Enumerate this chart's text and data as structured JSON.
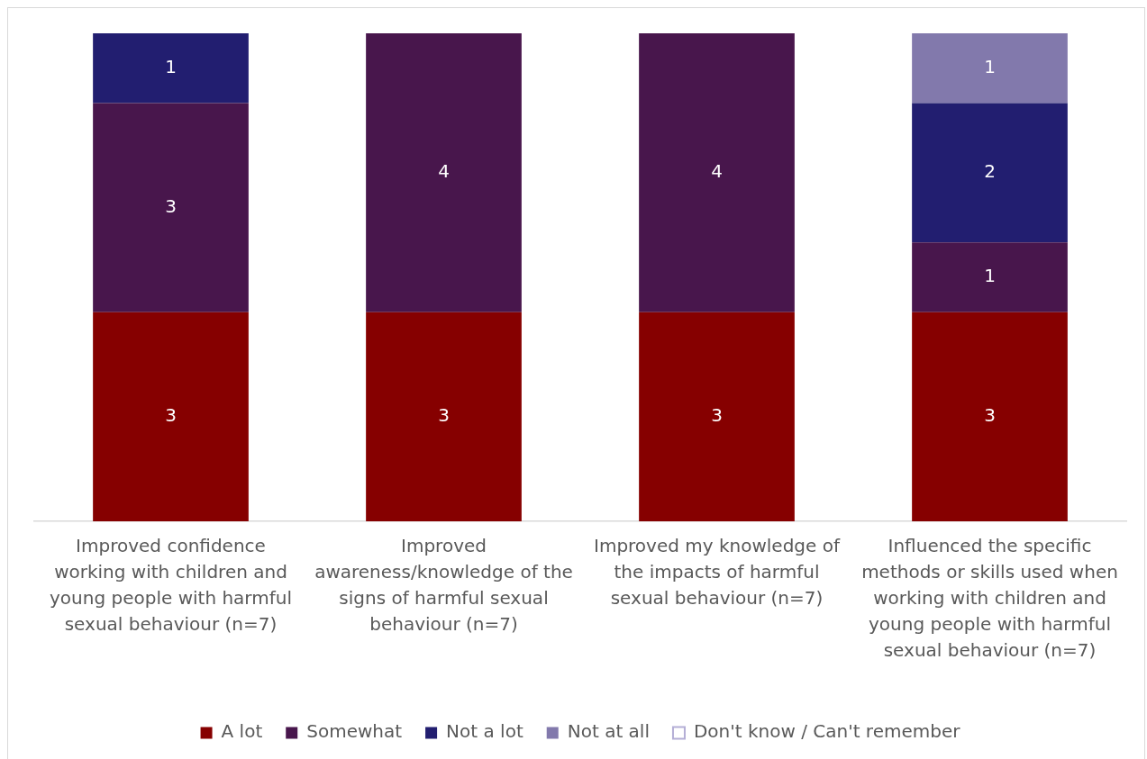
{
  "chart_data": {
    "type": "bar",
    "stacked": true,
    "legend": "bottom",
    "tick_labels": "x",
    "categories": [
      "Improved confidence working with children and young people with harmful sexual behaviour (n=7)",
      "Improved awareness/knowledge of the signs of harmful sexual behaviour (n=7)",
      "Improved my knowledge of the impacts of harmful sexual behaviour (n=7)",
      "Influenced the specific methods or skills used when working with children and young people with harmful sexual behaviour (n=7)"
    ],
    "series": [
      {
        "name": "A lot",
        "color": "#860000",
        "values": [
          3,
          3,
          3,
          3
        ],
        "value_labels": [
          "3",
          "3",
          "3",
          "3"
        ]
      },
      {
        "name": "Somewhat",
        "color": "#48164c",
        "values": [
          3,
          4,
          4,
          1
        ],
        "value_labels": [
          "3",
          "4",
          "4",
          "1"
        ]
      },
      {
        "name": "Not a lot",
        "color": "#221e70",
        "values": [
          1,
          0,
          0,
          2
        ],
        "value_labels": [
          "1",
          null,
          null,
          "2"
        ]
      },
      {
        "name": "Not at all",
        "color": "#8279ac",
        "values": [
          0,
          0,
          0,
          1
        ],
        "value_labels": [
          null,
          null,
          null,
          "1"
        ]
      },
      {
        "name": "Don't know / Can't remember",
        "color": "#ffffff",
        "values": [
          0,
          0,
          0,
          0
        ],
        "value_labels": [
          null,
          null,
          null,
          null
        ]
      }
    ]
  }
}
